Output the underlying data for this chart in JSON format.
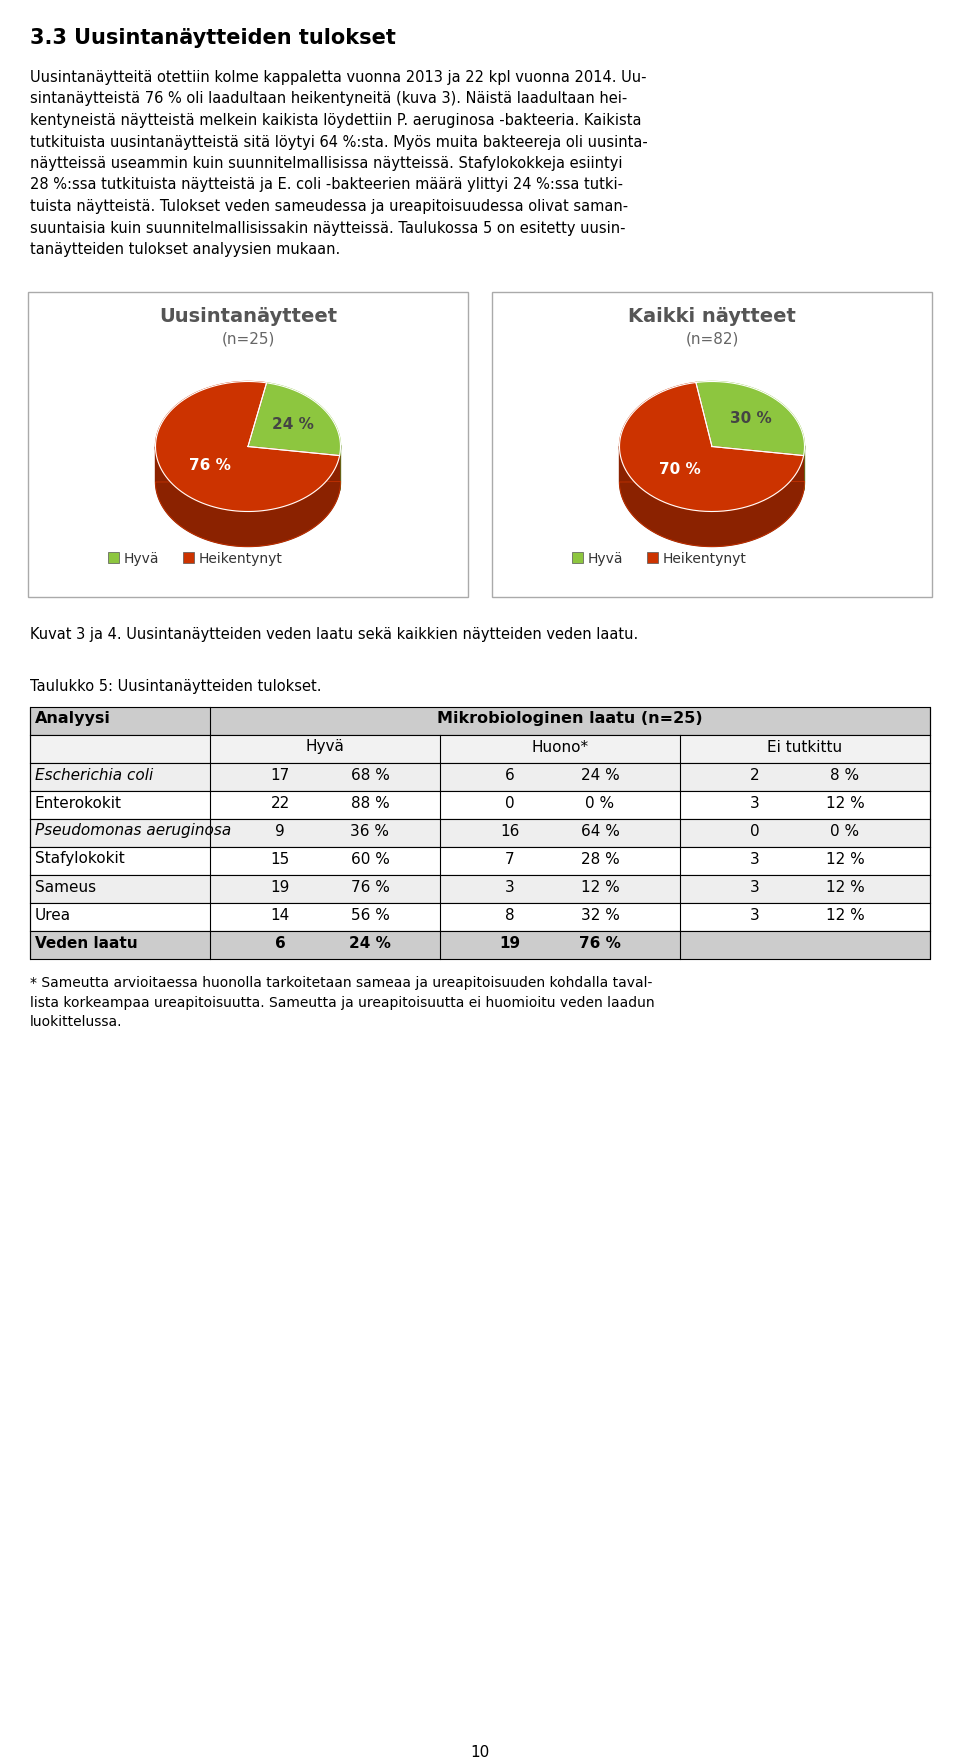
{
  "page_bg": "#ffffff",
  "heading": "3.3 Uusintanäytteiden tulokset",
  "body_lines": [
    "Uusintanäytteitä otettiin kolme kappaletta vuonna 2013 ja 22 kpl vuonna 2014. Uu-",
    "sintanäytteistä 76 % oli laadultaan heikentyneitä (kuva 3). Näistä laadultaan hei-",
    "kentyneistä näytteistä melkein kaikista löydettiin P. aeruginosa -bakteeria. Kaikista",
    "tutkituista uusintanäytteistä sitä löytyi 64 %:sta. Myös muita bakteereja oli uusinta-",
    "näytteissä useammin kuin suunnitelmallisissa näytteissä. Stafylokokkeja esiintyi",
    "28 %:ssa tutkituista näytteistä ja E. coli -bakteerien määrä ylittyi 24 %:ssa tutki-",
    "tuista näytteistä. Tulokset veden sameudessa ja ureapitoisuudessa olivat saman-",
    "suuntaisia kuin suunnitelmallisissakin näytteissä. Taulukossa 5 on esitetty uusin-",
    "tanäytteiden tulokset analyysien mukaan."
  ],
  "chart1_title": "Uusintanäytteet",
  "chart1_subtitle": "(n=25)",
  "chart1_values": [
    24,
    76
  ],
  "chart1_labels": [
    "24 %",
    "76 %"
  ],
  "chart2_title": "Kaikki näytteet",
  "chart2_subtitle": "(n=82)",
  "chart2_values": [
    30,
    70
  ],
  "chart2_labels": [
    "30 %",
    "70 %"
  ],
  "pie_colors": [
    "#8dc63f",
    "#cc3300"
  ],
  "pie_shadow_colors": [
    "#5a7a20",
    "#8b2200"
  ],
  "legend_labels": [
    "Hyvä",
    "Heikentynyt"
  ],
  "caption": "Kuvat 3 ja 4. Uusintanäytteiden veden laatu sekä kaikkien näytteiden veden laatu.",
  "table_title": "Taulukko 5: Uusintanäytteiden tulokset.",
  "table_header1": "Analyysi",
  "table_header2": "Mikrobiologinen laatu (n=25)",
  "table_subheaders": [
    "Hyvä",
    "Huono*",
    "Ei tutkittu"
  ],
  "table_rows": [
    [
      "Escherichia coli",
      "17",
      "68 %",
      "6",
      "24 %",
      "2",
      "8 %"
    ],
    [
      "Enterokokit",
      "22",
      "88 %",
      "0",
      "0 %",
      "3",
      "12 %"
    ],
    [
      "Pseudomonas aeruginosa",
      "9",
      "36 %",
      "16",
      "64 %",
      "0",
      "0 %"
    ],
    [
      "Stafylokokit",
      "15",
      "60 %",
      "7",
      "28 %",
      "3",
      "12 %"
    ],
    [
      "Sameus",
      "19",
      "76 %",
      "3",
      "12 %",
      "3",
      "12 %"
    ],
    [
      "Urea",
      "14",
      "56 %",
      "8",
      "32 %",
      "3",
      "12 %"
    ],
    [
      "Veden laatu",
      "6",
      "24 %",
      "19",
      "76 %",
      "",
      ""
    ]
  ],
  "italic_rows": [
    0,
    2
  ],
  "footnote_lines": [
    "* Sameutta arvioitaessa huonolla tarkoitetaan sameaa ja ureapitoisuuden kohdalla taval-",
    "lista korkeampaa ureapitoisuutta. Sameutta ja ureapitoisuutta ei huomioitu veden laadun",
    "luokittelussa."
  ],
  "page_number": "10"
}
